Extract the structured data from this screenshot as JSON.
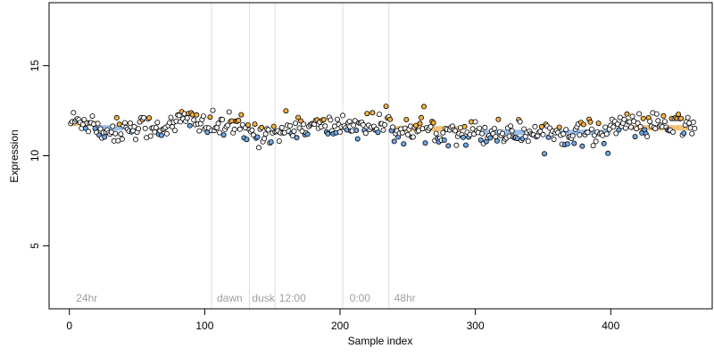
{
  "chart_data": {
    "type": "scatter",
    "xlabel": "Sample index",
    "ylabel": "Expression",
    "xlim": [
      -15,
      475
    ],
    "ylim": [
      1.5,
      18.5
    ],
    "x_ticks": [
      0,
      100,
      200,
      300,
      400
    ],
    "y_ticks": [
      5,
      10,
      15
    ],
    "grid": false,
    "legend": "none",
    "section_boundaries": [
      0,
      105,
      133,
      152,
      202,
      236
    ],
    "section_labels": [
      {
        "x": 3,
        "text": "24hr"
      },
      {
        "x": 107,
        "text": "dawn"
      },
      {
        "x": 133,
        "text": "dusk"
      },
      {
        "x": 153,
        "text": "12:00"
      },
      {
        "x": 205,
        "text": "0:00"
      },
      {
        "x": 238,
        "text": "48hr"
      }
    ],
    "level_bars": [
      {
        "x0": 0,
        "x1": 20,
        "y": 11.8,
        "color": "#f0b560"
      },
      {
        "x0": 20,
        "x1": 40,
        "y": 11.55,
        "color": "#8ab4e8"
      },
      {
        "x0": 240,
        "x1": 290,
        "y": 11.5,
        "color": "#f0b560"
      },
      {
        "x0": 300,
        "x1": 340,
        "y": 11.3,
        "color": "#8ab4e8"
      },
      {
        "x0": 360,
        "x1": 400,
        "y": 11.3,
        "color": "#8ab4e8"
      },
      {
        "x0": 415,
        "x1": 460,
        "y": 11.55,
        "color": "#f0b560"
      }
    ],
    "colors": {
      "high": "#f5b041",
      "low": "#6fa8e8",
      "mid": "#ffffff",
      "point_stroke": "#000000",
      "section_line": "#dcdcdc"
    },
    "series": [
      {
        "n_points": 462,
        "y_segments": [
          {
            "x0": 0,
            "x1": 20,
            "mean": 11.9
          },
          {
            "x0": 20,
            "x1": 40,
            "mean": 11.4
          },
          {
            "x0": 40,
            "x1": 80,
            "mean": 11.6
          },
          {
            "x0": 80,
            "x1": 100,
            "mean": 12.0
          },
          {
            "x0": 100,
            "x1": 130,
            "mean": 11.6
          },
          {
            "x0": 130,
            "x1": 160,
            "mean": 11.3
          },
          {
            "x0": 160,
            "x1": 200,
            "mean": 11.6
          },
          {
            "x0": 200,
            "x1": 240,
            "mean": 11.7
          },
          {
            "x0": 240,
            "x1": 290,
            "mean": 11.4
          },
          {
            "x0": 290,
            "x1": 340,
            "mean": 11.3
          },
          {
            "x0": 340,
            "x1": 400,
            "mean": 11.3
          },
          {
            "x0": 400,
            "x1": 462,
            "mean": 11.7
          }
        ],
        "spread": 0.35
      }
    ]
  }
}
